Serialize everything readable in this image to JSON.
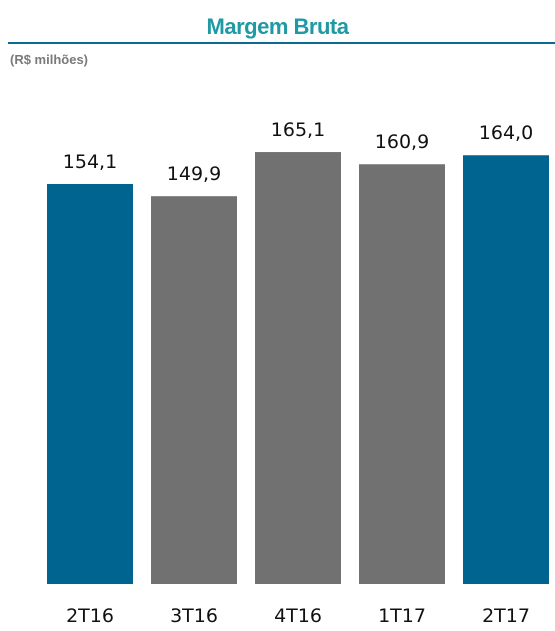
{
  "chart_data": {
    "type": "bar",
    "title": "Margem Bruta",
    "subtitle": "(R$ milhões)",
    "categories": [
      "2T16",
      "3T16",
      "4T16",
      "1T17",
      "2T17"
    ],
    "values": [
      154.1,
      149.9,
      165.1,
      160.9,
      164.0
    ],
    "value_labels": [
      "154,1",
      "149,9",
      "165,1",
      "160,9",
      "164,0"
    ],
    "colors": [
      "#006491",
      "#717171",
      "#717171",
      "#717171",
      "#006491"
    ],
    "xlabel": "",
    "ylabel": "",
    "grid": false,
    "legend": "none"
  },
  "colors": {
    "title": "#1f9aa3",
    "rule": "#0a6a8f",
    "highlight_bar": "#006491",
    "neutral_bar": "#717171"
  }
}
